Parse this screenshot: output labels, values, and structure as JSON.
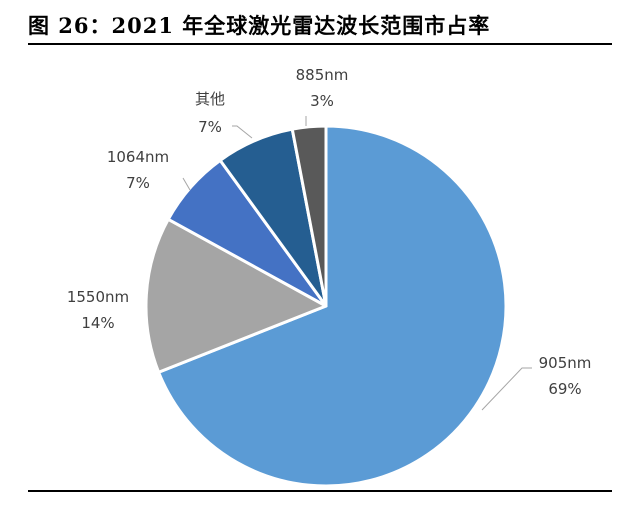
{
  "figure_title": "图 26：2021 年全球激光雷达波长范围市占率",
  "chart_data": {
    "type": "pie",
    "title": "",
    "slices": [
      {
        "label": "905nm",
        "value": 69,
        "value_label": "69%",
        "color": "#5B9BD5"
      },
      {
        "label": "1550nm",
        "value": 14,
        "value_label": "14%",
        "color": "#A5A5A5"
      },
      {
        "label": "1064nm",
        "value": 7,
        "value_label": "7%",
        "color": "#4472C4"
      },
      {
        "label": "其他",
        "value": 7,
        "value_label": "7%",
        "color": "#255E91"
      },
      {
        "label": "885nm",
        "value": 3,
        "value_label": "3%",
        "color": "#595959"
      }
    ]
  }
}
